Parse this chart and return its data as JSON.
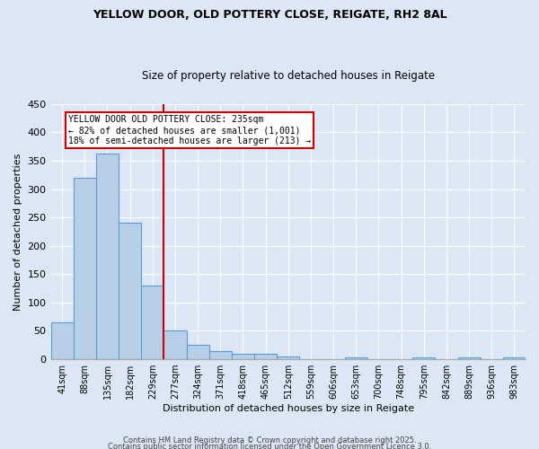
{
  "title1": "YELLOW DOOR, OLD POTTERY CLOSE, REIGATE, RH2 8AL",
  "title2": "Size of property relative to detached houses in Reigate",
  "xlabel": "Distribution of detached houses by size in Reigate",
  "ylabel": "Number of detached properties",
  "bar_color": "#b8cfe8",
  "bar_edge_color": "#5b9bd5",
  "background_color": "#dce6f5",
  "categories": [
    "41sqm",
    "88sqm",
    "135sqm",
    "182sqm",
    "229sqm",
    "277sqm",
    "324sqm",
    "371sqm",
    "418sqm",
    "465sqm",
    "512sqm",
    "559sqm",
    "606sqm",
    "653sqm",
    "700sqm",
    "748sqm",
    "795sqm",
    "842sqm",
    "889sqm",
    "936sqm",
    "983sqm"
  ],
  "values": [
    65,
    320,
    362,
    240,
    130,
    50,
    25,
    15,
    10,
    10,
    5,
    0,
    0,
    3,
    0,
    0,
    3,
    0,
    3,
    0,
    3
  ],
  "vline_x": 4.5,
  "vline_color": "#cc0000",
  "annotation_line1": "YELLOW DOOR OLD POTTERY CLOSE: 235sqm",
  "annotation_line2": "← 82% of detached houses are smaller (1,001)",
  "annotation_line3": "18% of semi-detached houses are larger (213) →",
  "annotation_border_color": "#cc0000",
  "ylim": [
    0,
    450
  ],
  "yticks": [
    0,
    50,
    100,
    150,
    200,
    250,
    300,
    350,
    400,
    450
  ],
  "footer1": "Contains HM Land Registry data © Crown copyright and database right 2025.",
  "footer2": "Contains public sector information licensed under the Open Government Licence 3.0."
}
